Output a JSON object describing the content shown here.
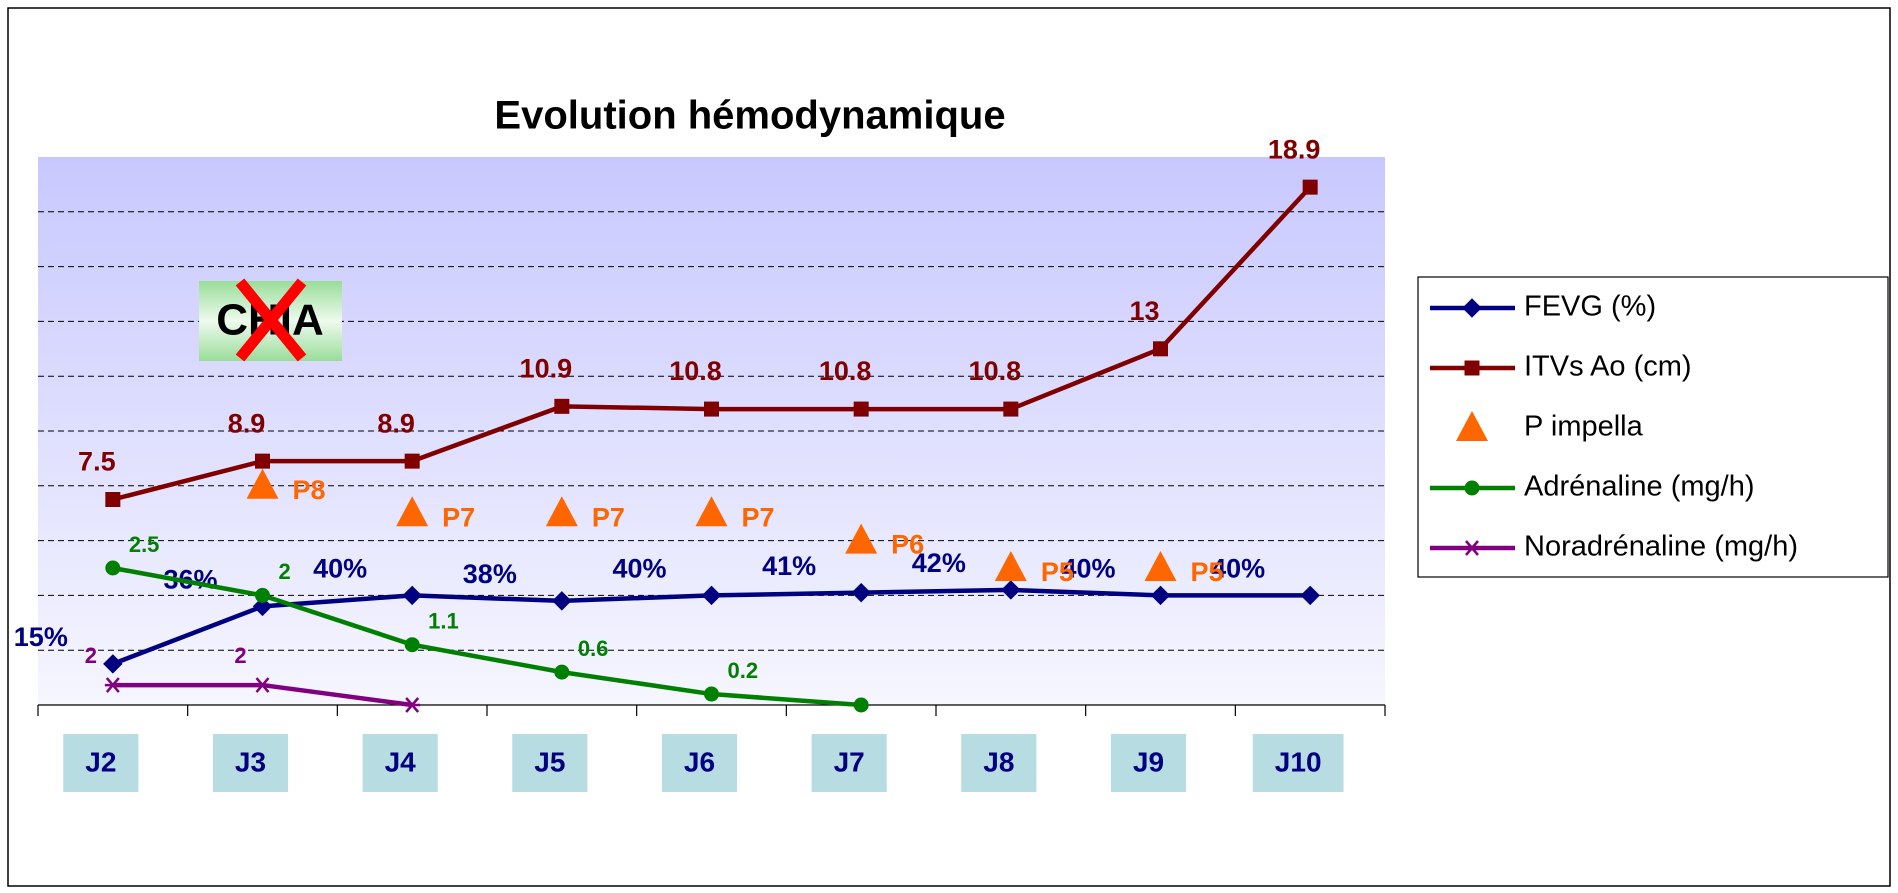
{
  "chart_data": {
    "type": "line",
    "title": "Evolution hémodynamique",
    "annotation": "CHIA",
    "categories": [
      "J2",
      "J3",
      "J4",
      "J5",
      "J6",
      "J7",
      "J8",
      "J9",
      "J10"
    ],
    "ylim": [
      0,
      20
    ],
    "ygrid": [
      2,
      4,
      6,
      8,
      10,
      12,
      14,
      16,
      18
    ],
    "series": [
      {
        "name": "FEVG (%)",
        "color": "#000080",
        "marker": "diamond",
        "line": true,
        "ylim": [
          0,
          200
        ],
        "values": [
          15,
          36,
          40,
          38,
          40,
          41,
          42,
          40,
          40
        ],
        "value_labels": [
          "15%",
          "36%",
          "40%",
          "38%",
          "40%",
          "41%",
          "42%",
          "40%",
          "40%"
        ]
      },
      {
        "name": "ITVs Ao (cm)",
        "color": "#800000",
        "marker": "square",
        "line": true,
        "values": [
          7.5,
          8.9,
          8.9,
          10.9,
          10.8,
          10.8,
          10.8,
          13,
          18.9
        ]
      },
      {
        "name": "P impella",
        "color": "#ff6600",
        "marker": "triangle",
        "line": false,
        "values": [
          null,
          8,
          7,
          7,
          7,
          6,
          5,
          5,
          null
        ],
        "value_labels": [
          null,
          "P8",
          "P7",
          "P7",
          "P7",
          "P6",
          "P5",
          "P5",
          null
        ]
      },
      {
        "name": "Adrénaline (mg/h)",
        "color": "#008000",
        "marker": "circle",
        "line": true,
        "ylim": [
          0,
          10
        ],
        "values": [
          2.5,
          2,
          1.1,
          0.6,
          0.2,
          0,
          null,
          null,
          null
        ],
        "value_labels": [
          "2.5",
          "2",
          "1.1",
          "0.6",
          "0.2",
          null,
          null,
          null,
          null
        ]
      },
      {
        "name": "Noradrénaline (mg/h)",
        "color": "#800080",
        "marker": "star",
        "line": true,
        "ylim": [
          0,
          55
        ],
        "values": [
          2,
          2,
          0,
          null,
          null,
          null,
          null,
          null,
          null
        ],
        "value_labels": [
          "2",
          "2",
          null,
          null,
          null,
          null,
          null,
          null,
          null
        ]
      }
    ]
  }
}
